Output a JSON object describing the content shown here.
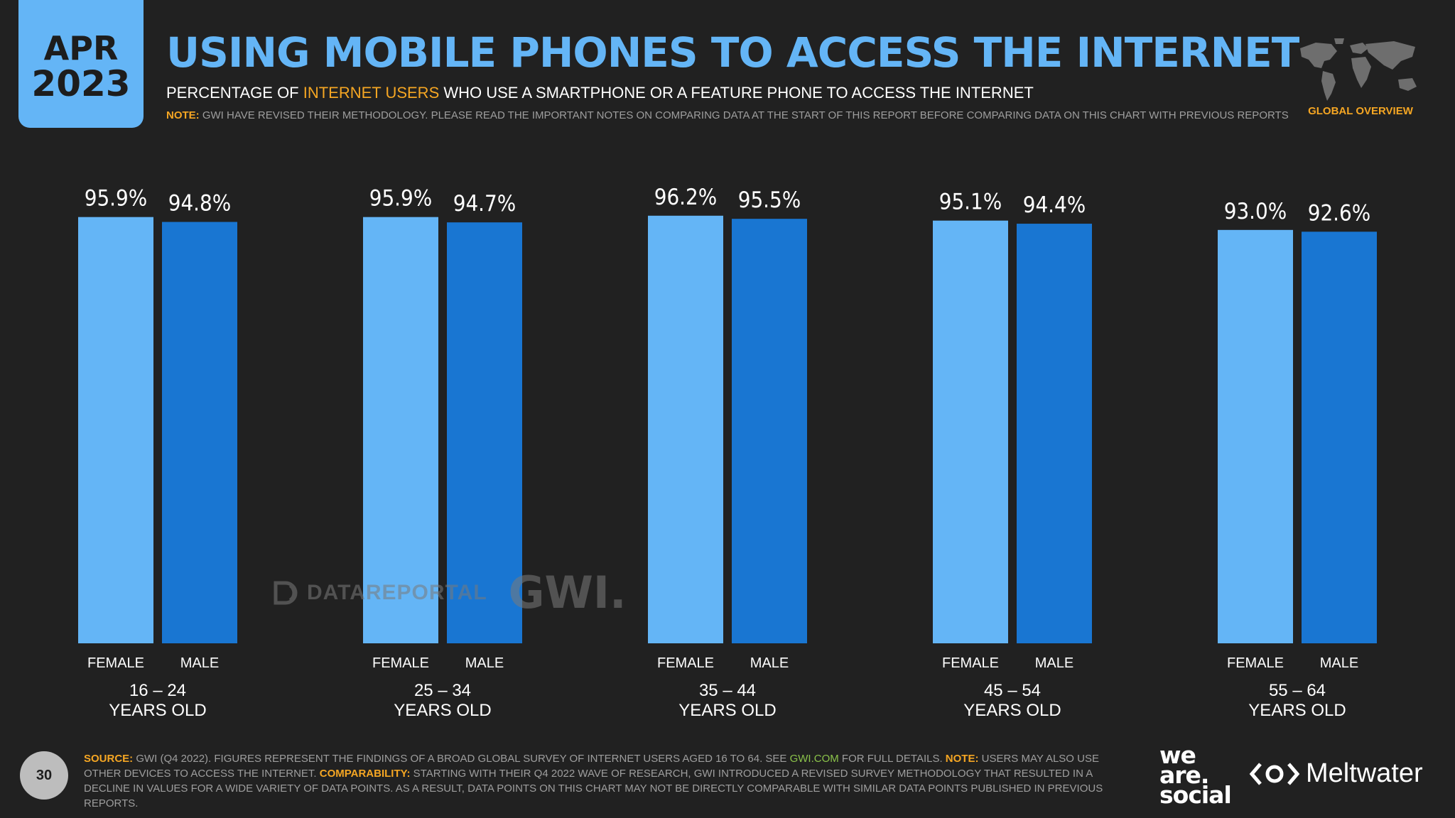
{
  "header": {
    "month": "APR",
    "year": "2023",
    "title": "USING MOBILE PHONES TO ACCESS THE INTERNET",
    "subtitle_pre": "PERCENTAGE OF ",
    "subtitle_highlight": "INTERNET USERS",
    "subtitle_post": " WHO USE A SMARTPHONE OR A FEATURE PHONE TO ACCESS THE INTERNET",
    "note_label": "NOTE:",
    "note_text": " GWI HAVE REVISED THEIR METHODOLOGY. PLEASE READ THE IMPORTANT NOTES ON COMPARING DATA AT THE START OF THIS REPORT BEFORE COMPARING DATA ON THIS CHART WITH PREVIOUS REPORTS",
    "section": "GLOBAL OVERVIEW"
  },
  "watermark": {
    "datareportal": "DATAREPORTAL",
    "gwi": "GWI."
  },
  "chart_data": {
    "type": "bar",
    "title": "USING MOBILE PHONES TO ACCESS THE INTERNET",
    "ylabel": "",
    "xlabel": "",
    "ylim": [
      0,
      100
    ],
    "categories": [
      "16 – 24",
      "25 – 34",
      "35 – 44",
      "45 – 54",
      "55 – 64"
    ],
    "category_suffix": "YEARS OLD",
    "series": [
      {
        "name": "FEMALE",
        "values": [
          95.9,
          95.9,
          96.2,
          95.1,
          93.0
        ],
        "labels": [
          "95.9%",
          "95.9%",
          "96.2%",
          "95.1%",
          "93.0%"
        ],
        "color": "#64b5f6"
      },
      {
        "name": "MALE",
        "values": [
          94.8,
          94.7,
          95.5,
          94.4,
          92.6
        ],
        "labels": [
          "94.8%",
          "94.7%",
          "95.5%",
          "94.4%",
          "92.6%"
        ],
        "color": "#1976d2"
      }
    ],
    "grid": false,
    "legend": "none"
  },
  "footer": {
    "page": "30",
    "source_label": "SOURCE:",
    "source_text": " GWI (Q4 2022). FIGURES REPRESENT THE FINDINGS OF A BROAD GLOBAL SURVEY OF INTERNET USERS AGED 16 TO 64. SEE ",
    "source_link": "GWI.COM",
    "source_text2": " FOR FULL DETAILS. ",
    "note_label": "NOTE:",
    "note_text": " USERS MAY ALSO USE OTHER DEVICES TO ACCESS THE INTERNET. ",
    "comp_label": "COMPARABILITY:",
    "comp_text": " STARTING WITH THEIR Q4 2022 WAVE OF RESEARCH, GWI INTRODUCED A REVISED SURVEY METHODOLOGY THAT RESULTED IN A DECLINE IN VALUES FOR A WIDE VARIETY OF DATA POINTS. AS A RESULT, DATA POINTS ON THIS CHART MAY NOT BE DIRECTLY COMPARABLE WITH SIMILAR DATA POINTS PUBLISHED IN PREVIOUS REPORTS.",
    "brand1_line1": "we",
    "brand1_line2": "are.",
    "brand1_line3": "social",
    "brand2": "Meltwater"
  }
}
